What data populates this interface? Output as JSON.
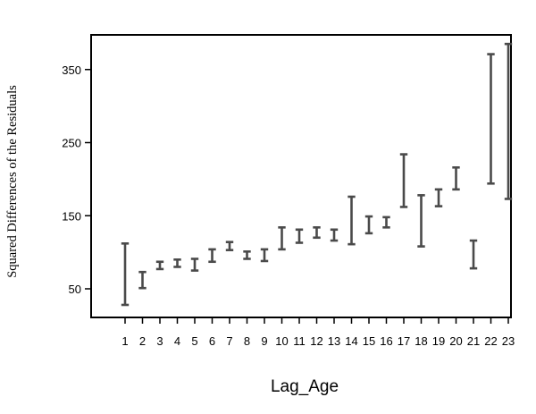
{
  "chart_data": {
    "type": "errorbar",
    "title": "",
    "xlabel": "Lag_Age",
    "ylabel": "Squared Differences of the Residuals",
    "xlim": [
      0,
      23.6
    ],
    "ylim": [
      10,
      395
    ],
    "y_ticks": [
      50,
      150,
      250,
      350
    ],
    "grid": false,
    "legend": "none",
    "colors": {
      "bars": "#4a4a4a",
      "axes": "#000000"
    },
    "intervals": [
      {
        "lag": "1",
        "low": 28,
        "high": 112
      },
      {
        "lag": "2",
        "low": 51,
        "high": 73
      },
      {
        "lag": "3",
        "low": 77,
        "high": 87
      },
      {
        "lag": "4",
        "low": 80,
        "high": 90
      },
      {
        "lag": "5",
        "low": 75,
        "high": 91
      },
      {
        "lag": "6",
        "low": 87,
        "high": 104
      },
      {
        "lag": "7",
        "low": 103,
        "high": 114
      },
      {
        "lag": "8",
        "low": 91,
        "high": 101
      },
      {
        "lag": "9",
        "low": 88,
        "high": 104
      },
      {
        "lag": "10",
        "low": 104,
        "high": 134
      },
      {
        "lag": "11",
        "low": 113,
        "high": 131
      },
      {
        "lag": "12",
        "low": 120,
        "high": 134
      },
      {
        "lag": "13",
        "low": 116,
        "high": 131
      },
      {
        "lag": "14",
        "low": 111,
        "high": 176
      },
      {
        "lag": "15",
        "low": 126,
        "high": 149
      },
      {
        "lag": "16",
        "low": 134,
        "high": 148
      },
      {
        "lag": "17",
        "low": 162,
        "high": 234
      },
      {
        "lag": "18",
        "low": 108,
        "high": 178
      },
      {
        "lag": "19",
        "low": 163,
        "high": 186
      },
      {
        "lag": "20",
        "low": 186,
        "high": 216
      },
      {
        "lag": "21",
        "low": 78,
        "high": 116
      },
      {
        "lag": "22",
        "low": 194,
        "high": 371
      },
      {
        "lag": "23",
        "low": 173,
        "high": 385
      }
    ]
  }
}
